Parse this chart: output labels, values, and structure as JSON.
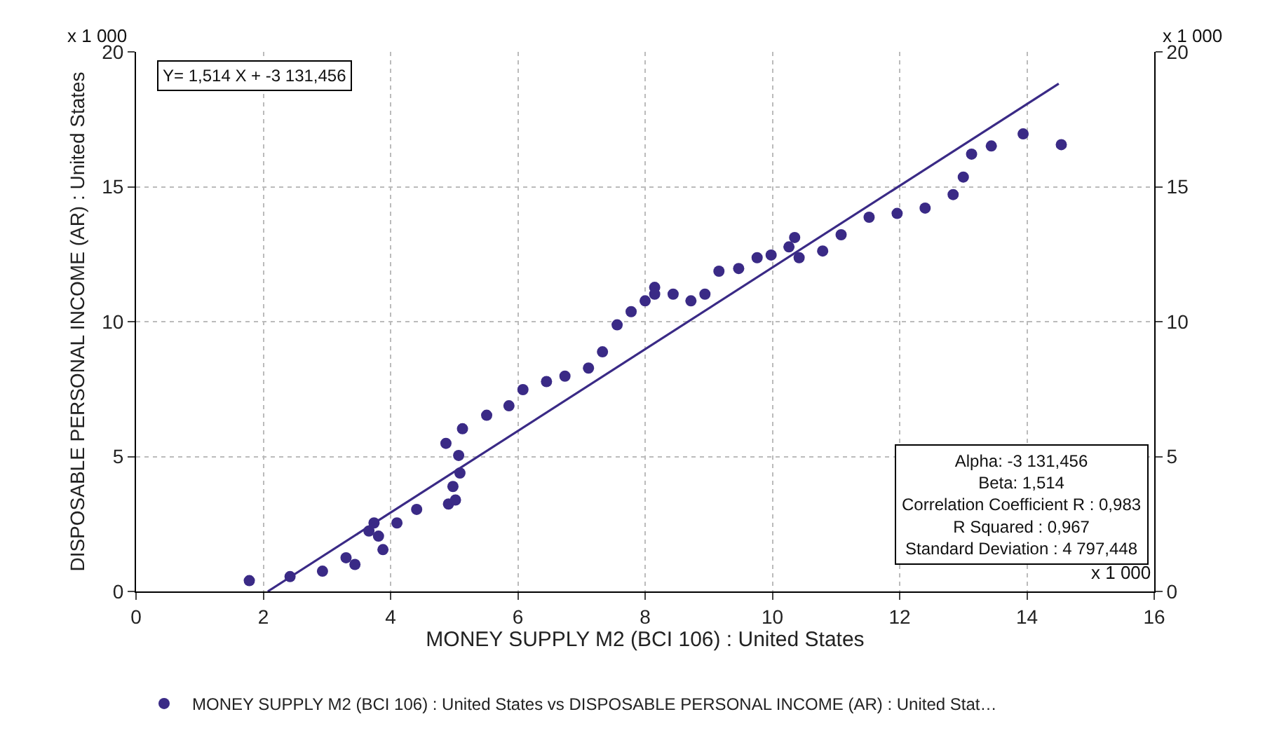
{
  "chart_data": {
    "type": "scatter",
    "xlabel": "MONEY SUPPLY M2 (BCI 106) : United States",
    "ylabel": "DISPOSABLE PERSONAL INCOME (AR) : United States",
    "xlim": [
      0,
      16
    ],
    "xticks": [
      0,
      2,
      4,
      6,
      8,
      10,
      12,
      14,
      16
    ],
    "ylim": [
      0,
      20
    ],
    "yticks": [
      0,
      5,
      10,
      15,
      20
    ],
    "y2lim": [
      0,
      20
    ],
    "y2ticks": [
      0,
      5,
      10,
      15,
      20
    ],
    "grid": true,
    "legend": "bottom",
    "annotations": [
      "x 1 000",
      "x 1 000",
      "x 1 000",
      "Y= 1,514 X + -3 131,456",
      "Alpha: -3 131,456\nBeta: 1,514\nCorrelation Coefficient R : 0,983\nR Squared : 0,967\nStandard Deviation : 4 797,448"
    ],
    "series": [
      {
        "name": "MONEY SUPPLY M2 (BCI 106) : United States vs DISPOSABLE PERSONAL INCOME (AR) : United Stat…",
        "color": "#3a2a86",
        "marker": "circle",
        "x": [
          1.78,
          2.42,
          2.93,
          3.44,
          3.3,
          3.88,
          3.81,
          3.66,
          3.74,
          4.1,
          4.41,
          4.91,
          5.02,
          4.98,
          5.09,
          5.07,
          4.87,
          5.13,
          5.51,
          5.86,
          6.08,
          6.45,
          6.74,
          7.11,
          7.33,
          7.56,
          7.78,
          8.0,
          8.15,
          8.15,
          8.44,
          8.72,
          8.94,
          9.16,
          9.47,
          9.76,
          9.98,
          10.26,
          10.35,
          10.42,
          10.79,
          11.08,
          11.52,
          11.96,
          12.4,
          12.84,
          13.0,
          13.13,
          13.44,
          13.94,
          14.54
        ],
        "values": [
          0.4,
          0.55,
          0.75,
          1.0,
          1.25,
          1.55,
          2.05,
          2.24,
          2.54,
          2.54,
          3.04,
          3.24,
          3.39,
          3.89,
          4.39,
          5.04,
          5.49,
          6.03,
          6.53,
          6.88,
          7.48,
          7.78,
          7.98,
          8.28,
          8.88,
          9.88,
          10.37,
          10.77,
          11.27,
          11.02,
          11.02,
          10.77,
          11.02,
          11.87,
          11.97,
          12.37,
          12.47,
          12.77,
          13.12,
          12.37,
          12.62,
          13.22,
          13.87,
          14.01,
          14.21,
          14.71,
          15.36,
          16.21,
          16.51,
          16.96,
          16.56
        ]
      },
      {
        "color": "#3a2a86",
        "type": "line",
        "x": [
          2.07,
          14.5
        ],
        "values": [
          0.0,
          18.82
        ]
      }
    ]
  }
}
